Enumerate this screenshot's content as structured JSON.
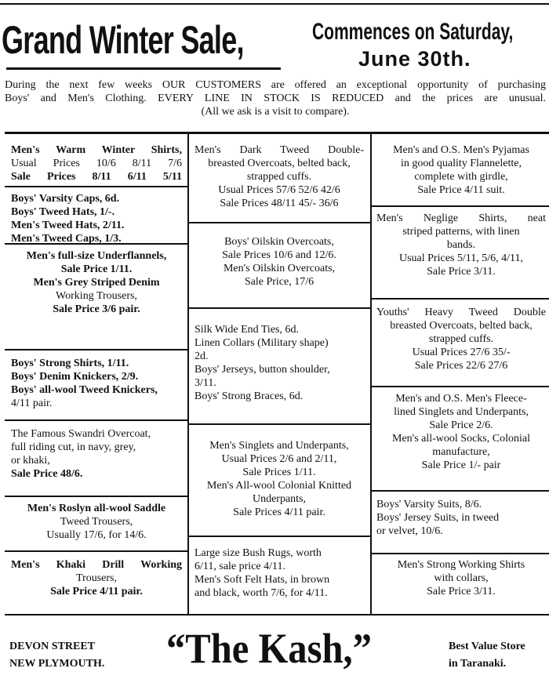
{
  "header": {
    "title": "Grand Winter Sale,",
    "commences": "Commences on Saturday,",
    "date": "June 30th."
  },
  "intro": {
    "line1": "During the next few weeks OUR CUSTOMERS are offered an exceptional opportunity of purchasing",
    "line2": "Boys' and Men's Clothing. EVERY LINE IN STOCK IS REDUCED and the prices are unusual.",
    "line3": "(All we ask is a visit to compare)."
  },
  "left": [
    [
      "Men's Warm Winter Shirts,",
      "Usual Prices 10/6  8/11  7/6",
      "Sale Prices   8/11 6/11  5/11"
    ],
    [
      "Boys' Varsity Caps, 6d.",
      "Boys' Tweed Hats, 1/-.",
      "Men's Tweed Hats, 2/11.",
      "Men's Tweed Caps, 1/3."
    ],
    [
      "Men's full-size Underflannels,",
      "Sale Price 1/11.",
      "Men's Grey Striped Denim",
      "Working Trousers,",
      "Sale Price 3/6 pair."
    ],
    [
      "Boys' Strong Shirts, 1/11.",
      "Boys' Denim Knickers, 2/9.",
      "Boys' all-wool Tweed Knickers,",
      "4/11 pair."
    ],
    [
      "The Famous Swandri Overcoat,",
      "full riding cut, in navy, grey,",
      "or khaki,",
      "Sale Price 48/6."
    ],
    [
      "Men's Roslyn all-wool Saddle",
      "Tweed Trousers,",
      "Usually 17/6, for 14/6."
    ],
    [
      "Men's Khaki Drill Working",
      "Trousers,",
      "Sale Price 4/11 pair."
    ]
  ],
  "middle": [
    [
      "Men's Dark Tweed Double-",
      "breasted Overcoats, belted back,",
      "strapped cuffs.",
      "Usual Prices 57/6  52/6  42/6",
      "Sale Prices 48/11 45/-  36/6"
    ],
    [
      "Boys' Oilskin Overcoats,",
      "Sale Prices 10/6 and 12/6.",
      "Men's Oilskin Overcoats,",
      "Sale Price, 17/6"
    ],
    [
      "Silk Wide End Ties, 6d.",
      "Linen Collars (Military shape)",
      "2d.",
      "Boys' Jerseys, button shoulder,",
      "3/11.",
      "Boys' Strong Braces, 6d."
    ],
    [
      "Men's Singlets and Underpants,",
      "Usual Prices 2/6 and 2/11,",
      "Sale Prices 1/11.",
      "Men's All-wool Colonial Knitted",
      "Underpants,",
      "Sale Prices 4/11 pair."
    ],
    [
      "Large size Bush Rugs, worth",
      "6/11, sale price 4/11.",
      "Men's Soft Felt Hats, in brown",
      "and black, worth 7/6, for 4/11."
    ]
  ],
  "right": [
    [
      "Men's and O.S. Men's Pyjamas",
      "in good quality Flannelette,",
      "complete with girdle,",
      "Sale Price 4/11 suit."
    ],
    [
      "Men's Neglige Shirts, neat",
      "striped patterns, with linen",
      "bands.",
      "Usual Prices 5/11, 5/6, 4/11,",
      "Sale Price 3/11."
    ],
    [
      "Youths' Heavy Tweed Double",
      "breasted Overcoats, belted back,",
      "strapped cuffs.",
      "Usual Prices 27/6  35/-",
      "Sale Prices  22/6  27/6"
    ],
    [
      "Men's and O.S. Men's Fleece-",
      "lined Singlets and Underpants,",
      "Sale Price 2/6.",
      "Men's all-wool Socks, Colonial",
      "manufacture,",
      "Sale Price 1/- pair"
    ],
    [
      "Boys' Varsity Suits, 8/6.",
      "Boys' Jersey Suits, in tweed",
      "or velvet, 10/6."
    ],
    [
      "Men's Strong Working Shirts",
      "with collars,",
      "Sale Price 3/11."
    ]
  ],
  "footer": {
    "address1": "DEVON STREET",
    "address2": "NEW PLYMOUTH.",
    "store": "“The Kash,”",
    "tag1": "Best Value Store",
    "tag2": "in Taranaki."
  }
}
